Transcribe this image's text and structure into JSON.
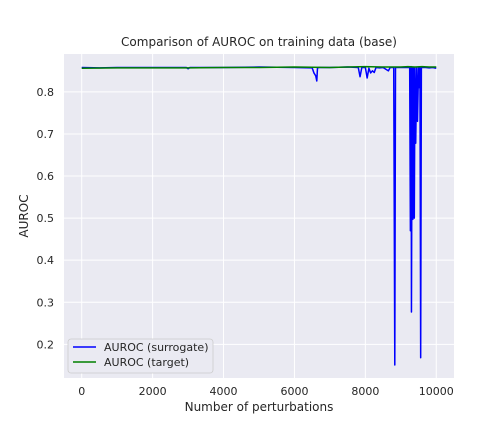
{
  "chart_data": {
    "type": "line",
    "title": "Comparison of AUROC on training data (base)",
    "xlabel": "Number of perturbations",
    "ylabel": "AUROC",
    "xlim": [
      -500,
      10500
    ],
    "ylim": [
      0.12,
      0.89
    ],
    "xticks": [
      0,
      2000,
      4000,
      6000,
      8000,
      10000
    ],
    "xtick_labels": [
      "0",
      "2000",
      "4000",
      "6000",
      "8000",
      "10000"
    ],
    "yticks": [
      0.2,
      0.3,
      0.4,
      0.5,
      0.6,
      0.7,
      0.8
    ],
    "ytick_labels": [
      "0.2",
      "0.3",
      "0.4",
      "0.5",
      "0.6",
      "0.7",
      "0.8"
    ],
    "grid": true,
    "legend_position": "lower-left",
    "series": [
      {
        "name": "AUROC (surrogate)",
        "color": "#0000ff",
        "x": [
          0,
          500,
          1000,
          2000,
          2950,
          3000,
          3050,
          4000,
          5000,
          6000,
          6500,
          6550,
          6600,
          6630,
          6650,
          6700,
          7000,
          7500,
          7800,
          7850,
          7900,
          8000,
          8050,
          8100,
          8150,
          8200,
          8250,
          8300,
          8400,
          8500,
          8650,
          8700,
          8750,
          8800,
          8830,
          8850,
          8900,
          9000,
          9100,
          9200,
          9250,
          9270,
          9290,
          9300,
          9320,
          9340,
          9360,
          9380,
          9400,
          9420,
          9450,
          9470,
          9500,
          9520,
          9540,
          9560,
          9580,
          9600,
          9700,
          9800,
          9900,
          10000
        ],
        "y": [
          0.858,
          0.857,
          0.858,
          0.858,
          0.858,
          0.855,
          0.858,
          0.858,
          0.859,
          0.858,
          0.857,
          0.845,
          0.838,
          0.826,
          0.857,
          0.858,
          0.858,
          0.859,
          0.858,
          0.836,
          0.858,
          0.858,
          0.833,
          0.856,
          0.845,
          0.85,
          0.846,
          0.858,
          0.857,
          0.858,
          0.85,
          0.858,
          0.858,
          0.858,
          0.151,
          0.858,
          0.858,
          0.858,
          0.858,
          0.858,
          0.858,
          0.47,
          0.86,
          0.277,
          0.858,
          0.497,
          0.858,
          0.5,
          0.858,
          0.678,
          0.858,
          0.73,
          0.858,
          0.81,
          0.858,
          0.168,
          0.858,
          0.858,
          0.858,
          0.857,
          0.858,
          0.856
        ]
      },
      {
        "name": "AUROC (target)",
        "color": "#008000",
        "x": [
          0,
          1000,
          2000,
          3000,
          4000,
          5000,
          6000,
          7000,
          7500,
          8000,
          8500,
          9000,
          9200,
          9400,
          9600,
          9800,
          10000
        ],
        "y": [
          0.856,
          0.857,
          0.857,
          0.857,
          0.858,
          0.858,
          0.859,
          0.858,
          0.859,
          0.86,
          0.859,
          0.859,
          0.86,
          0.859,
          0.86,
          0.859,
          0.859
        ]
      }
    ]
  }
}
